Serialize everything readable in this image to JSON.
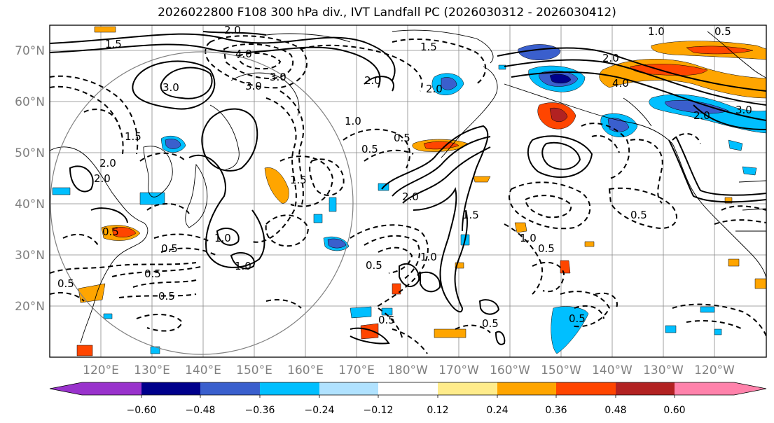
{
  "title": "2026022800 F108 300 hPa div., IVT Landfall PC (2026030312 - 2026030412)",
  "lat_labels": [
    "70°N",
    "60°N",
    "50°N",
    "40°N",
    "30°N",
    "20°N"
  ],
  "lon_labels": [
    "120°E",
    "130°E",
    "140°E",
    "150°E",
    "160°E",
    "170°E",
    "180°W",
    "170°W",
    "160°W",
    "150°W",
    "140°W",
    "130°W",
    "120°W"
  ],
  "colorbar": {
    "levels": [
      "−0.60",
      "−0.48",
      "−0.36",
      "−0.24",
      "−0.12",
      "0.12",
      "0.24",
      "0.36",
      "0.48",
      "0.60"
    ],
    "colors": [
      "#9932cc",
      "#00008b",
      "#3a5fcd",
      "#00bfff",
      "#b0e2ff",
      "#ffffff",
      "#ffec8b",
      "#ffa500",
      "#ff4500",
      "#b22222",
      "#ff82ab"
    ]
  },
  "contour_labels": [
    "1.5",
    "2.0",
    "4.0",
    "3.0",
    "2.0",
    "1.5",
    "0.5",
    "1.0",
    "0.5",
    "2.0",
    "0.5",
    "1.0",
    "1.5",
    "0.5",
    "0.5",
    "0.5",
    "1.0",
    "0.5",
    "2.0",
    "3.0",
    "4.0",
    "1.0",
    "0.5",
    "1.5",
    "0.5",
    "2.0",
    "3.0",
    "0.5",
    "1.0",
    "2.0",
    "1.0",
    "0.5",
    "2.0",
    "0.5",
    "1.5",
    "3.0",
    "2.0",
    "0.5",
    "0.5"
  ],
  "legend_colors": {
    "negative_strong": "#00008b",
    "negative_mid": "#3a5fcd",
    "negative_light": "#00bfff",
    "positive_light": "#ffa500",
    "positive_mid": "#ff4500",
    "positive_strong": "#b22222"
  }
}
